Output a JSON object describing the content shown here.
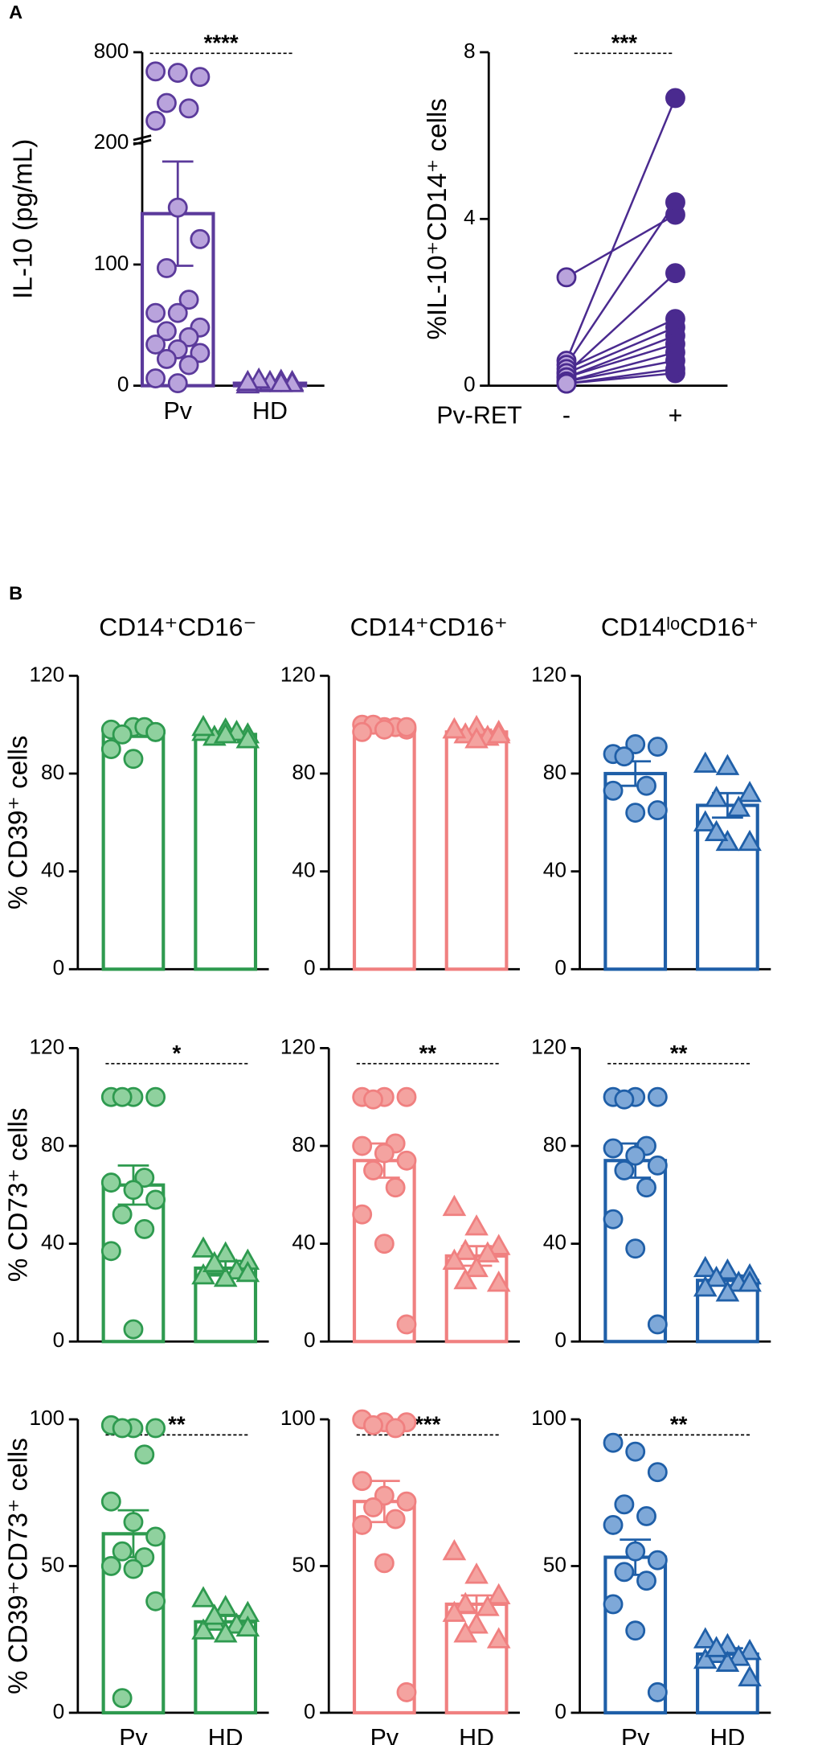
{
  "chart_data": [
    {
      "type": "bar-scatter",
      "panel_label": "A",
      "ylabel": "IL-10 (pg/mL)",
      "ylim": [
        0,
        800
      ],
      "yticks": [
        0,
        100,
        200,
        800
      ],
      "broken_axis": {
        "lower": [
          0,
          200
        ],
        "upper": [
          200,
          800
        ]
      },
      "significance": "****",
      "groups": [
        {
          "label": "Pv",
          "color": "#5b3a9b",
          "fill": "#b9a3dc",
          "marker": "circle",
          "bar": 142,
          "error": 43,
          "points": [
            660,
            650,
            620,
            430,
            390,
            300,
            147,
            121,
            97,
            71,
            60,
            60,
            48,
            45,
            40,
            34,
            30,
            27,
            22,
            17,
            6,
            2
          ]
        },
        {
          "label": "HD",
          "color": "#5b3a9b",
          "fill": "#b9a3dc",
          "marker": "triangle",
          "bar": 2,
          "error": 0.5,
          "points": [
            1,
            2,
            3,
            2,
            4,
            1,
            3,
            2,
            5,
            2,
            3
          ]
        }
      ]
    },
    {
      "type": "paired",
      "ylabel": "%IL-10⁺CD14⁺ cells",
      "xlabel": "Pv-RET",
      "categories": [
        "-",
        "+"
      ],
      "ylim": [
        0,
        8
      ],
      "yticks": [
        0,
        4,
        8
      ],
      "significance": "***",
      "color": "#4a2a8f",
      "fills": [
        "#b9a3dc",
        "#4a2a8f"
      ],
      "before": [
        2.6,
        0.6,
        0.5,
        0.4,
        0.3,
        0.3,
        0.2,
        0.2,
        0.1,
        0.1,
        0.05,
        0.05
      ],
      "after": [
        4.1,
        6.9,
        4.4,
        1.6,
        2.7,
        1.4,
        1.2,
        1.0,
        0.8,
        0.6,
        0.3,
        0.4
      ]
    },
    {
      "type": "bar-scatter",
      "panel_label": "B",
      "title": "CD14⁺CD16⁻",
      "ylabel": "% CD39⁺ cells",
      "ylim": [
        0,
        120
      ],
      "yticks": [
        0,
        40,
        80,
        120
      ],
      "groups": [
        {
          "label": null,
          "color": "#2e9a4f",
          "fill": "#8fd19e",
          "marker": "circle",
          "bar": 97,
          "error": 2,
          "points": [
            98,
            99,
            97,
            96,
            99,
            90,
            86,
            97
          ]
        },
        {
          "label": null,
          "color": "#2e9a4f",
          "fill": "#8fd19e",
          "marker": "triangle",
          "bar": 96,
          "error": 1,
          "points": [
            97,
            98,
            96,
            95,
            97,
            99,
            96,
            94
          ]
        }
      ]
    },
    {
      "type": "bar-scatter",
      "title": "CD14⁺CD16⁺",
      "ylim": [
        0,
        120
      ],
      "yticks": [
        0,
        40,
        80,
        120
      ],
      "groups": [
        {
          "label": null,
          "color": "#f08080",
          "fill": "#f4a3a0",
          "marker": "circle",
          "bar": 99,
          "error": 1,
          "points": [
            100,
            99,
            98,
            100,
            99,
            97,
            98,
            99
          ]
        },
        {
          "label": null,
          "color": "#f08080",
          "fill": "#f4a3a0",
          "marker": "triangle",
          "bar": 97,
          "error": 1,
          "points": [
            98,
            99,
            97,
            96,
            95,
            98,
            94,
            96
          ]
        }
      ]
    },
    {
      "type": "bar-scatter",
      "title": "CD14ˡᵒCD16⁺",
      "ylim": [
        0,
        120
      ],
      "yticks": [
        0,
        40,
        80,
        120
      ],
      "groups": [
        {
          "label": null,
          "color": "#1f5fa8",
          "fill": "#7ea8d8",
          "marker": "circle",
          "bar": 80,
          "error": 5,
          "points": [
            88,
            92,
            91,
            87,
            75,
            73,
            64,
            65
          ]
        },
        {
          "label": null,
          "color": "#1f5fa8",
          "fill": "#7ea8d8",
          "marker": "triangle",
          "bar": 67,
          "error": 5,
          "points": [
            84,
            83,
            72,
            70,
            66,
            60,
            52,
            52,
            56
          ]
        }
      ]
    },
    {
      "type": "bar-scatter",
      "ylabel": "% CD73⁺ cells",
      "ylim": [
        0,
        120
      ],
      "yticks": [
        0,
        40,
        80,
        120
      ],
      "significance": "*",
      "groups": [
        {
          "label": null,
          "color": "#2e9a4f",
          "fill": "#8fd19e",
          "marker": "circle",
          "bar": 64,
          "error": 8,
          "points": [
            100,
            100,
            100,
            100,
            67,
            65,
            62,
            58,
            52,
            46,
            37,
            5
          ]
        },
        {
          "label": null,
          "color": "#2e9a4f",
          "fill": "#8fd19e",
          "marker": "triangle",
          "bar": 30,
          "error": 3,
          "points": [
            38,
            36,
            33,
            31,
            29,
            27,
            26,
            28,
            32
          ]
        }
      ]
    },
    {
      "type": "bar-scatter",
      "ylim": [
        0,
        120
      ],
      "yticks": [
        0,
        40,
        80,
        120
      ],
      "significance": "**",
      "groups": [
        {
          "label": null,
          "color": "#f08080",
          "fill": "#f4a3a0",
          "marker": "circle",
          "bar": 74,
          "error": 7,
          "points": [
            100,
            100,
            100,
            99,
            81,
            80,
            77,
            74,
            70,
            63,
            52,
            40,
            7
          ]
        },
        {
          "label": null,
          "color": "#f08080",
          "fill": "#f4a3a0",
          "marker": "triangle",
          "bar": 35,
          "error": 4,
          "points": [
            55,
            47,
            39,
            37,
            36,
            33,
            30,
            24,
            25
          ]
        }
      ]
    },
    {
      "type": "bar-scatter",
      "ylim": [
        0,
        120
      ],
      "yticks": [
        0,
        40,
        80,
        120
      ],
      "significance": "**",
      "groups": [
        {
          "label": null,
          "color": "#1f5fa8",
          "fill": "#7ea8d8",
          "marker": "circle",
          "bar": 74,
          "error": 7,
          "points": [
            100,
            100,
            100,
            99,
            80,
            79,
            76,
            72,
            70,
            63,
            50,
            38,
            7
          ]
        },
        {
          "label": null,
          "color": "#1f5fa8",
          "fill": "#7ea8d8",
          "marker": "triangle",
          "bar": 25,
          "error": 2,
          "points": [
            30,
            29,
            27,
            26,
            24,
            22,
            20,
            24
          ]
        }
      ]
    },
    {
      "type": "bar-scatter",
      "ylabel": "% CD39⁺CD73⁺ cells",
      "ylim": [
        0,
        100
      ],
      "yticks": [
        0,
        50,
        100
      ],
      "significance": "**",
      "groups": [
        {
          "label": "Pv",
          "color": "#2e9a4f",
          "fill": "#8fd19e",
          "marker": "circle",
          "bar": 61,
          "error": 8,
          "points": [
            98,
            97,
            97,
            97,
            88,
            72,
            65,
            60,
            55,
            53,
            50,
            49,
            38,
            5
          ]
        },
        {
          "label": "HD",
          "color": "#2e9a4f",
          "fill": "#8fd19e",
          "marker": "triangle",
          "bar": 31,
          "error": 2,
          "points": [
            39,
            36,
            34,
            31,
            30,
            28,
            27,
            29,
            33
          ]
        }
      ]
    },
    {
      "type": "bar-scatter",
      "ylim": [
        0,
        100
      ],
      "yticks": [
        0,
        50,
        100
      ],
      "significance": "***",
      "groups": [
        {
          "label": "Pv",
          "color": "#f08080",
          "fill": "#f4a3a0",
          "marker": "circle",
          "bar": 72,
          "error": 7,
          "points": [
            100,
            99,
            99,
            98,
            97,
            79,
            74,
            72,
            70,
            66,
            64,
            51,
            7
          ]
        },
        {
          "label": "HD",
          "color": "#f08080",
          "fill": "#f4a3a0",
          "marker": "triangle",
          "bar": 37,
          "error": 3,
          "points": [
            55,
            47,
            40,
            37,
            36,
            34,
            30,
            25,
            27
          ]
        }
      ]
    },
    {
      "type": "bar-scatter",
      "ylim": [
        0,
        100
      ],
      "yticks": [
        0,
        50,
        100
      ],
      "significance": "**",
      "groups": [
        {
          "label": "Pv",
          "color": "#1f5fa8",
          "fill": "#7ea8d8",
          "marker": "circle",
          "bar": 53,
          "error": 6,
          "points": [
            92,
            89,
            82,
            71,
            67,
            64,
            55,
            52,
            48,
            45,
            37,
            28,
            7
          ]
        },
        {
          "label": "HD",
          "color": "#1f5fa8",
          "fill": "#7ea8d8",
          "marker": "triangle",
          "bar": 20,
          "error": 2,
          "points": [
            25,
            23,
            21,
            20,
            19,
            18,
            17,
            12,
            22
          ]
        }
      ]
    }
  ]
}
